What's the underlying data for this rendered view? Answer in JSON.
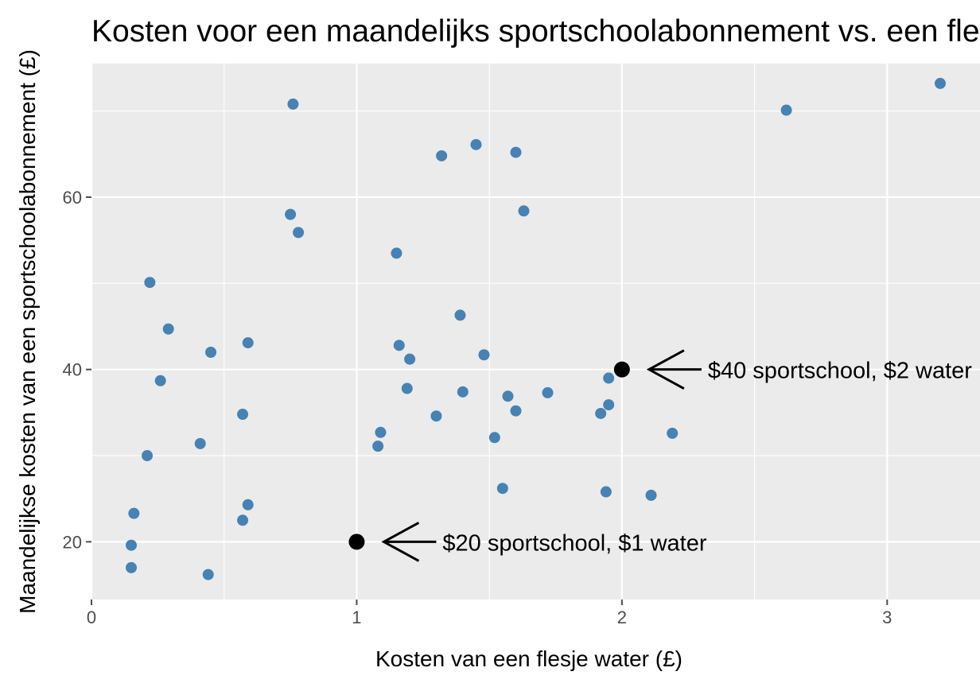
{
  "chart_data": {
    "type": "scatter",
    "title": "Kosten voor een maandelijks sportschoolabonnement vs. een flesje water",
    "xlabel": "Kosten van een flesje water (£)",
    "ylabel": "Maandelijkse kosten van een sportschoolabonnement (£)",
    "xlim": [
      0,
      3.35
    ],
    "ylim": [
      13.3,
      75.5
    ],
    "x_ticks": [
      0,
      1,
      2,
      3
    ],
    "y_ticks": [
      20,
      40,
      60
    ],
    "x_tick_labels": [
      "0",
      "1",
      "2",
      "3"
    ],
    "y_tick_labels": [
      "20",
      "40",
      "60"
    ],
    "grid": true,
    "point_color": "#4682b4",
    "highlight_color": "#000000",
    "background_color": "#ebebeb",
    "points": [
      {
        "x": 0.15,
        "y": 17.0
      },
      {
        "x": 0.15,
        "y": 19.6
      },
      {
        "x": 0.16,
        "y": 23.3
      },
      {
        "x": 0.21,
        "y": 30.0
      },
      {
        "x": 0.22,
        "y": 50.1
      },
      {
        "x": 0.26,
        "y": 38.7
      },
      {
        "x": 0.29,
        "y": 44.7
      },
      {
        "x": 0.41,
        "y": 31.4
      },
      {
        "x": 0.44,
        "y": 16.2
      },
      {
        "x": 0.45,
        "y": 42.0
      },
      {
        "x": 0.57,
        "y": 22.5
      },
      {
        "x": 0.57,
        "y": 34.8
      },
      {
        "x": 0.59,
        "y": 24.3
      },
      {
        "x": 0.59,
        "y": 43.1
      },
      {
        "x": 0.75,
        "y": 58.0
      },
      {
        "x": 0.76,
        "y": 70.8
      },
      {
        "x": 0.78,
        "y": 55.9
      },
      {
        "x": 1.08,
        "y": 31.1
      },
      {
        "x": 1.09,
        "y": 32.7
      },
      {
        "x": 1.15,
        "y": 53.5
      },
      {
        "x": 1.16,
        "y": 42.8
      },
      {
        "x": 1.19,
        "y": 37.8
      },
      {
        "x": 1.2,
        "y": 41.2
      },
      {
        "x": 1.3,
        "y": 34.6
      },
      {
        "x": 1.32,
        "y": 64.8
      },
      {
        "x": 1.39,
        "y": 46.3
      },
      {
        "x": 1.4,
        "y": 37.4
      },
      {
        "x": 1.45,
        "y": 66.1
      },
      {
        "x": 1.48,
        "y": 41.7
      },
      {
        "x": 1.52,
        "y": 32.1
      },
      {
        "x": 1.55,
        "y": 26.2
      },
      {
        "x": 1.57,
        "y": 36.9
      },
      {
        "x": 1.6,
        "y": 35.2
      },
      {
        "x": 1.6,
        "y": 65.2
      },
      {
        "x": 1.63,
        "y": 58.4
      },
      {
        "x": 1.72,
        "y": 37.3
      },
      {
        "x": 1.92,
        "y": 34.9
      },
      {
        "x": 1.94,
        "y": 25.8
      },
      {
        "x": 1.95,
        "y": 35.9
      },
      {
        "x": 1.95,
        "y": 39.0
      },
      {
        "x": 2.11,
        "y": 25.4
      },
      {
        "x": 2.19,
        "y": 32.6
      },
      {
        "x": 2.62,
        "y": 70.1
      },
      {
        "x": 3.2,
        "y": 73.2
      }
    ],
    "highlights": [
      {
        "x": 1,
        "y": 20,
        "label": "$20 sportschool, $1 water"
      },
      {
        "x": 2,
        "y": 40,
        "label": "$40 sportschool, $2 water"
      }
    ]
  }
}
